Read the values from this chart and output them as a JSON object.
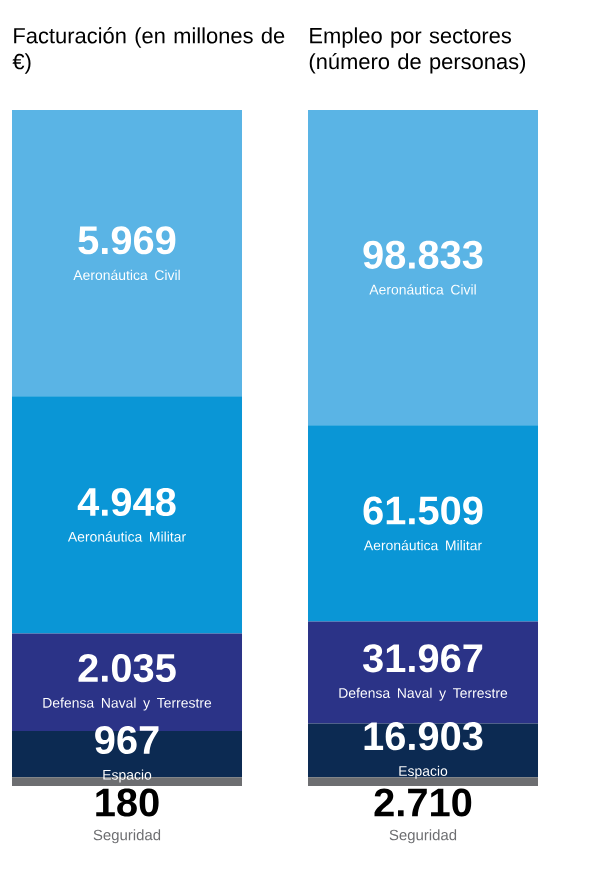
{
  "chart_data": [
    {
      "type": "bar",
      "title": "Facturación (en millones de €)",
      "stacked": true,
      "categories": [
        null
      ],
      "tick_labels": false,
      "series": [
        {
          "name": "Seguridad",
          "color": "#6d6e71",
          "values": [
            180
          ],
          "value_labels": [
            "180"
          ]
        },
        {
          "name": "Espacio",
          "color": "#0c2a52",
          "values": [
            967
          ],
          "value_labels": [
            "967"
          ]
        },
        {
          "name": "Defensa Naval y Terrestre",
          "color": "#2b3387",
          "values": [
            2035
          ],
          "value_labels": [
            "2.035"
          ]
        },
        {
          "name": "Aeronáutica Militar",
          "color": "#0a96d6",
          "values": [
            4948
          ],
          "value_labels": [
            "4.948"
          ]
        },
        {
          "name": "Aeronáutica Civil",
          "color": "#5ab4e5",
          "values": [
            5969
          ],
          "value_labels": [
            "5.969"
          ]
        }
      ]
    },
    {
      "type": "bar",
      "title": "Empleo por sectores (número de personas)",
      "stacked": true,
      "categories": [
        null
      ],
      "tick_labels": false,
      "series": [
        {
          "name": "Seguridad",
          "color": "#6d6e71",
          "values": [
            2710
          ],
          "value_labels": [
            "2.710"
          ]
        },
        {
          "name": "Espacio",
          "color": "#0c2a52",
          "values": [
            16903
          ],
          "value_labels": [
            "16.903"
          ]
        },
        {
          "name": "Defensa Naval y Terrestre",
          "color": "#2b3387",
          "values": [
            31967
          ],
          "value_labels": [
            "31.967"
          ]
        },
        {
          "name": "Aeronáutica Militar",
          "color": "#0a96d6",
          "values": [
            61509
          ],
          "value_labels": [
            "61.509"
          ]
        },
        {
          "name": "Aeronáutica Civil",
          "color": "#5ab4e5",
          "values": [
            98833
          ],
          "value_labels": [
            "98.833"
          ]
        }
      ]
    }
  ]
}
